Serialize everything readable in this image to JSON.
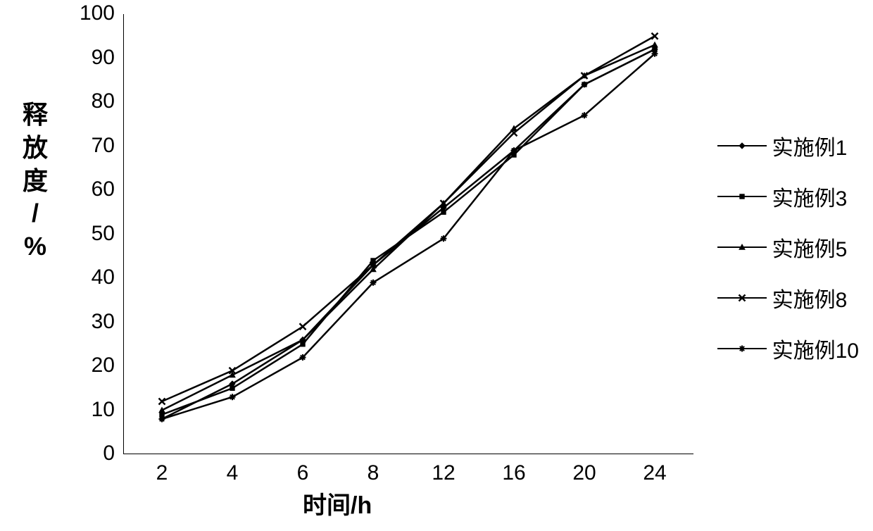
{
  "chart": {
    "type": "line",
    "background_color": "#ffffff",
    "line_color": "#000000",
    "line_width": 2.5,
    "axis_color": "#000000",
    "axis_width": 2,
    "text_color": "#000000",
    "yaxis": {
      "title": "释放度/%",
      "title_fontsize": 36,
      "title_fontweight": "bold",
      "min": 0,
      "max": 100,
      "tick_step": 10,
      "ticks": [
        0,
        10,
        20,
        30,
        40,
        50,
        60,
        70,
        80,
        90,
        100
      ],
      "tick_fontsize": 30
    },
    "xaxis": {
      "title": "时间/h",
      "title_fontsize": 34,
      "title_fontweight": "bold",
      "categories": [
        "2",
        "4",
        "6",
        "8",
        "12",
        "16",
        "20",
        "24"
      ],
      "tick_fontsize": 30
    },
    "series": [
      {
        "name": "实施例1",
        "marker": "diamond",
        "marker_size": 8,
        "values": [
          8,
          16,
          26,
          43,
          56,
          69,
          84,
          92
        ]
      },
      {
        "name": "实施例3",
        "marker": "square",
        "marker_size": 8,
        "values": [
          9,
          15,
          25,
          44,
          55,
          68,
          84,
          92
        ]
      },
      {
        "name": "实施例5",
        "marker": "triangle",
        "marker_size": 8,
        "values": [
          10,
          18,
          26,
          42,
          57,
          74,
          86,
          93
        ]
      },
      {
        "name": "实施例8",
        "marker": "x",
        "marker_size": 9,
        "values": [
          12,
          19,
          29,
          43,
          57,
          73,
          86,
          95
        ]
      },
      {
        "name": "实施例10",
        "marker": "star",
        "marker_size": 9,
        "values": [
          8,
          13,
          22,
          39,
          49,
          69,
          77,
          91
        ]
      }
    ],
    "legend": {
      "fontsize": 30,
      "position": "right",
      "item_spacing": 28
    }
  }
}
